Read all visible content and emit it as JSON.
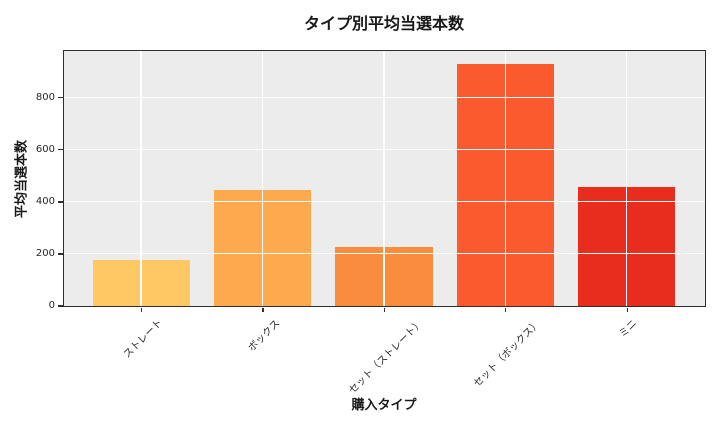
{
  "chart_data": {
    "type": "bar",
    "title": "タイプ別平均当選本数",
    "xlabel": "購入タイプ",
    "ylabel": "平均当選本数",
    "categories": [
      "ストレート",
      "ボックス",
      "セット（ストレート）",
      "セット（ボックス）",
      "ミニ"
    ],
    "values": [
      175,
      445,
      225,
      930,
      455
    ],
    "bar_colors": [
      "#FFC864",
      "#FEA94E",
      "#FA8C3E",
      "#FA5A2E",
      "#E82C1E"
    ],
    "yticks": [
      0,
      200,
      400,
      600,
      800
    ],
    "ylim": [
      0,
      980
    ],
    "grid": true,
    "grid_over_bars": true,
    "xtick_rotation_deg": 45,
    "legend": "none",
    "style": {
      "plot_bg": "#ececec",
      "grid_color": "#ffffff",
      "spine_color": "#2e2e2e",
      "text_color": "#1a1a1a",
      "tick_color": "#262626"
    }
  }
}
